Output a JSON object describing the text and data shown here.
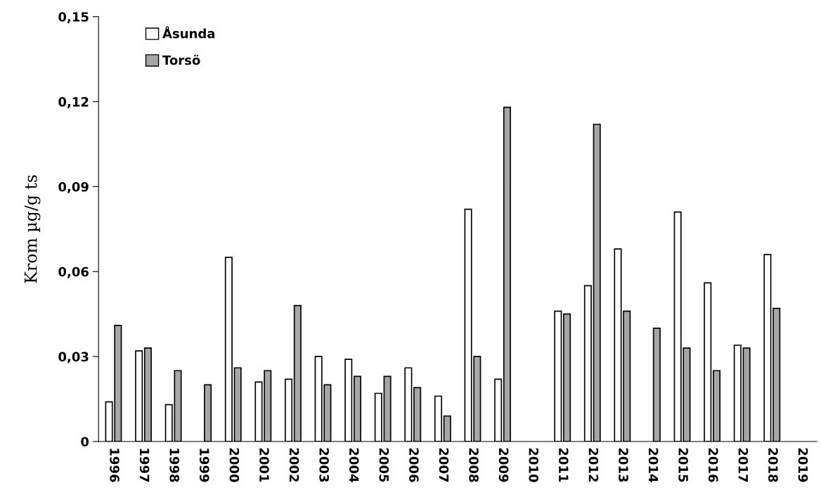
{
  "chart_data": {
    "type": "bar",
    "ylabel": "Krom µg/g ts",
    "categories": [
      "1996",
      "1997",
      "1998",
      "1999",
      "2000",
      "2001",
      "2002",
      "2003",
      "2004",
      "2005",
      "2006",
      "2007",
      "2008",
      "2009",
      "2010",
      "2011",
      "2012",
      "2013",
      "2014",
      "2015",
      "2016",
      "2017",
      "2018",
      "2019"
    ],
    "series": [
      {
        "name": "Åsunda",
        "color": "#ffffff",
        "values": [
          0.014,
          0.032,
          0.013,
          null,
          0.065,
          0.021,
          0.022,
          0.03,
          0.029,
          0.017,
          0.026,
          0.016,
          0.082,
          0.022,
          null,
          0.046,
          0.055,
          0.068,
          null,
          0.081,
          0.056,
          0.034,
          0.066,
          null
        ]
      },
      {
        "name": "Torsö",
        "color": "#a6a6a6",
        "values": [
          0.041,
          0.033,
          0.025,
          0.02,
          0.026,
          0.025,
          0.048,
          0.02,
          0.023,
          0.023,
          0.019,
          0.009,
          0.03,
          0.118,
          null,
          0.045,
          0.112,
          0.046,
          0.04,
          0.033,
          0.025,
          0.033,
          0.047,
          null
        ]
      }
    ],
    "ylim": [
      0,
      0.15
    ],
    "yticks": [
      {
        "value": 0,
        "label": "0"
      },
      {
        "value": 0.03,
        "label": "0,03"
      },
      {
        "value": 0.06,
        "label": "0,06"
      },
      {
        "value": 0.09,
        "label": "0,09"
      },
      {
        "value": 0.12,
        "label": "0,12"
      },
      {
        "value": 0.15,
        "label": "0,15"
      }
    ],
    "grid": false,
    "legend": "top left"
  }
}
